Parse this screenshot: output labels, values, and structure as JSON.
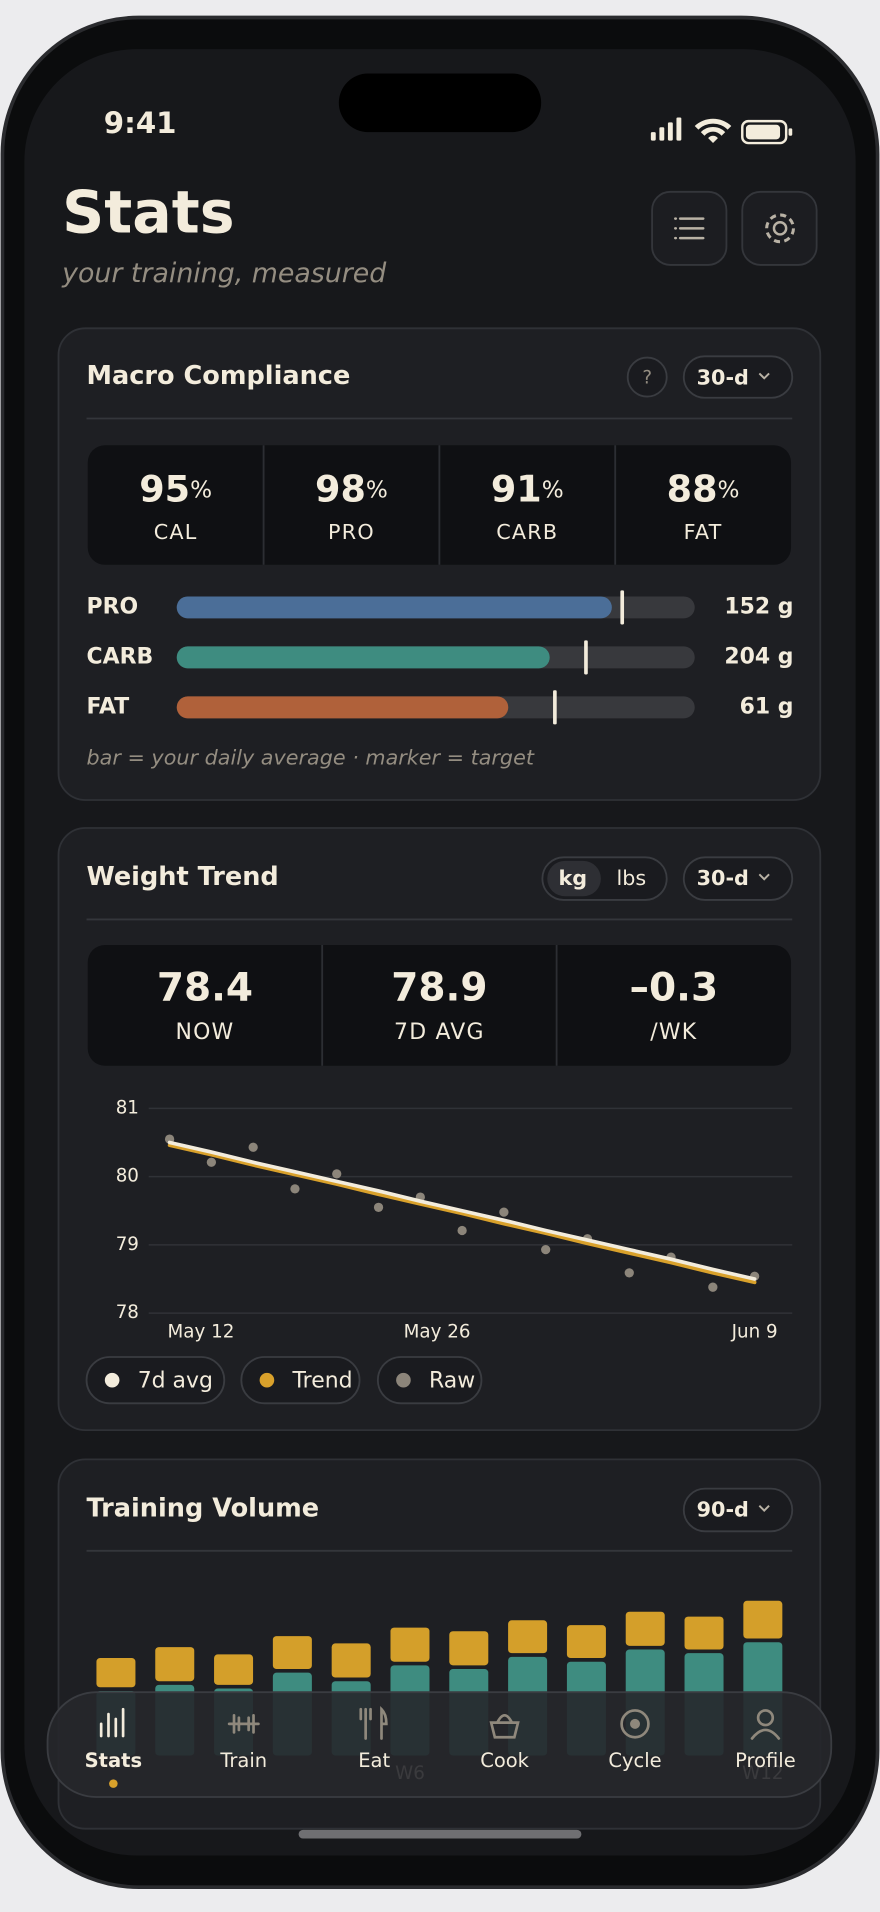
{
  "status_bar": {
    "time": "9:41"
  },
  "header": {
    "title": "Stats",
    "subtitle": "your training, measured"
  },
  "macro_compliance": {
    "title": "Macro Compliance",
    "help": "?",
    "range": "30-d",
    "stats": [
      {
        "value": 95,
        "unit": "%",
        "label": "CAL"
      },
      {
        "value": 98,
        "unit": "%",
        "label": "PRO"
      },
      {
        "value": 91,
        "unit": "%",
        "label": "CARB"
      },
      {
        "value": 88,
        "unit": "%",
        "label": "FAT"
      }
    ],
    "xlim": [
      0,
      100
    ],
    "bars": [
      {
        "label": "PRO",
        "average": 84,
        "target": 86,
        "value_label": "152 g",
        "color": "#4b6e98"
      },
      {
        "label": "CARB",
        "average": 72,
        "target": 79,
        "value_label": "204 g",
        "color": "#3e8c80"
      },
      {
        "label": "FAT",
        "average": 64,
        "target": 73,
        "value_label": "61 g",
        "color": "#b0613a"
      }
    ],
    "note": "bar = your daily average · marker = target"
  },
  "weight_trend": {
    "title": "Weight Trend",
    "units": [
      {
        "label": "kg",
        "active": true
      },
      {
        "label": "lbs",
        "active": false
      }
    ],
    "range": "30-d",
    "stats": [
      {
        "value": 78.4,
        "label": "NOW"
      },
      {
        "value": 78.9,
        "label": "7D AVG"
      },
      {
        "value": -0.3,
        "value_label": "–0.3",
        "label": "/WK",
        "color": "#e0a63e"
      }
    ],
    "chart_data": {
      "type": "line",
      "x": [
        0,
        1,
        2,
        3,
        4,
        5,
        6,
        7,
        8,
        9,
        10,
        11,
        12,
        13,
        14
      ],
      "xlim": [
        -0.5,
        14.9
      ],
      "xticks": [
        {
          "value": 0.75,
          "label": "May 12"
        },
        {
          "value": 6.4,
          "label": "May 26"
        },
        {
          "value": 14,
          "label": "Jun 9"
        }
      ],
      "ylim": [
        78,
        81
      ],
      "yticks": [
        78,
        79,
        80,
        81
      ],
      "grid": true,
      "series": [
        {
          "name": "7d avg",
          "color": "#f3ecdc",
          "mark": "line",
          "values": [
            80.5,
            80.36,
            80.21,
            80.07,
            79.93,
            79.79,
            79.64,
            79.5,
            79.36,
            79.21,
            79.07,
            78.93,
            78.79,
            78.64,
            78.5
          ]
        },
        {
          "name": "Trend",
          "color": "#d9a12b",
          "mark": "line",
          "values": [
            80.46,
            80.32,
            80.17,
            80.03,
            79.89,
            79.74,
            79.6,
            79.46,
            79.31,
            79.17,
            79.02,
            78.88,
            78.74,
            78.59,
            78.45
          ]
        },
        {
          "name": "Raw",
          "color": "#8c857a",
          "mark": "dot",
          "values": [
            80.55,
            80.21,
            80.43,
            79.82,
            80.04,
            79.55,
            79.7,
            79.21,
            79.48,
            78.93,
            79.09,
            78.59,
            78.82,
            78.38,
            78.54
          ]
        }
      ]
    }
  },
  "training_volume": {
    "title": "Training Volume",
    "range": "90-d",
    "chart_data": {
      "type": "bar",
      "stacked": true,
      "categories": [
        null,
        null,
        null,
        null,
        null,
        "W6",
        null,
        null,
        null,
        null,
        null,
        "W12"
      ],
      "ylim": [
        0,
        140
      ],
      "series": [
        {
          "color": "#3e8c80",
          "values": [
            53,
            58,
            55,
            68,
            61,
            74,
            71,
            81,
            77,
            87,
            84,
            93
          ]
        },
        {
          "color": "#d49f2a",
          "values": [
            27,
            31,
            28,
            30,
            31,
            31,
            31,
            30,
            30,
            31,
            30,
            34
          ]
        }
      ]
    }
  },
  "tab_bar": {
    "tabs": [
      {
        "label": "Stats",
        "active": true
      },
      {
        "label": "Train",
        "active": false
      },
      {
        "label": "Eat",
        "active": false
      },
      {
        "label": "Cook",
        "active": false
      },
      {
        "label": "Cycle",
        "active": false
      },
      {
        "label": "Profile",
        "active": false
      }
    ]
  }
}
